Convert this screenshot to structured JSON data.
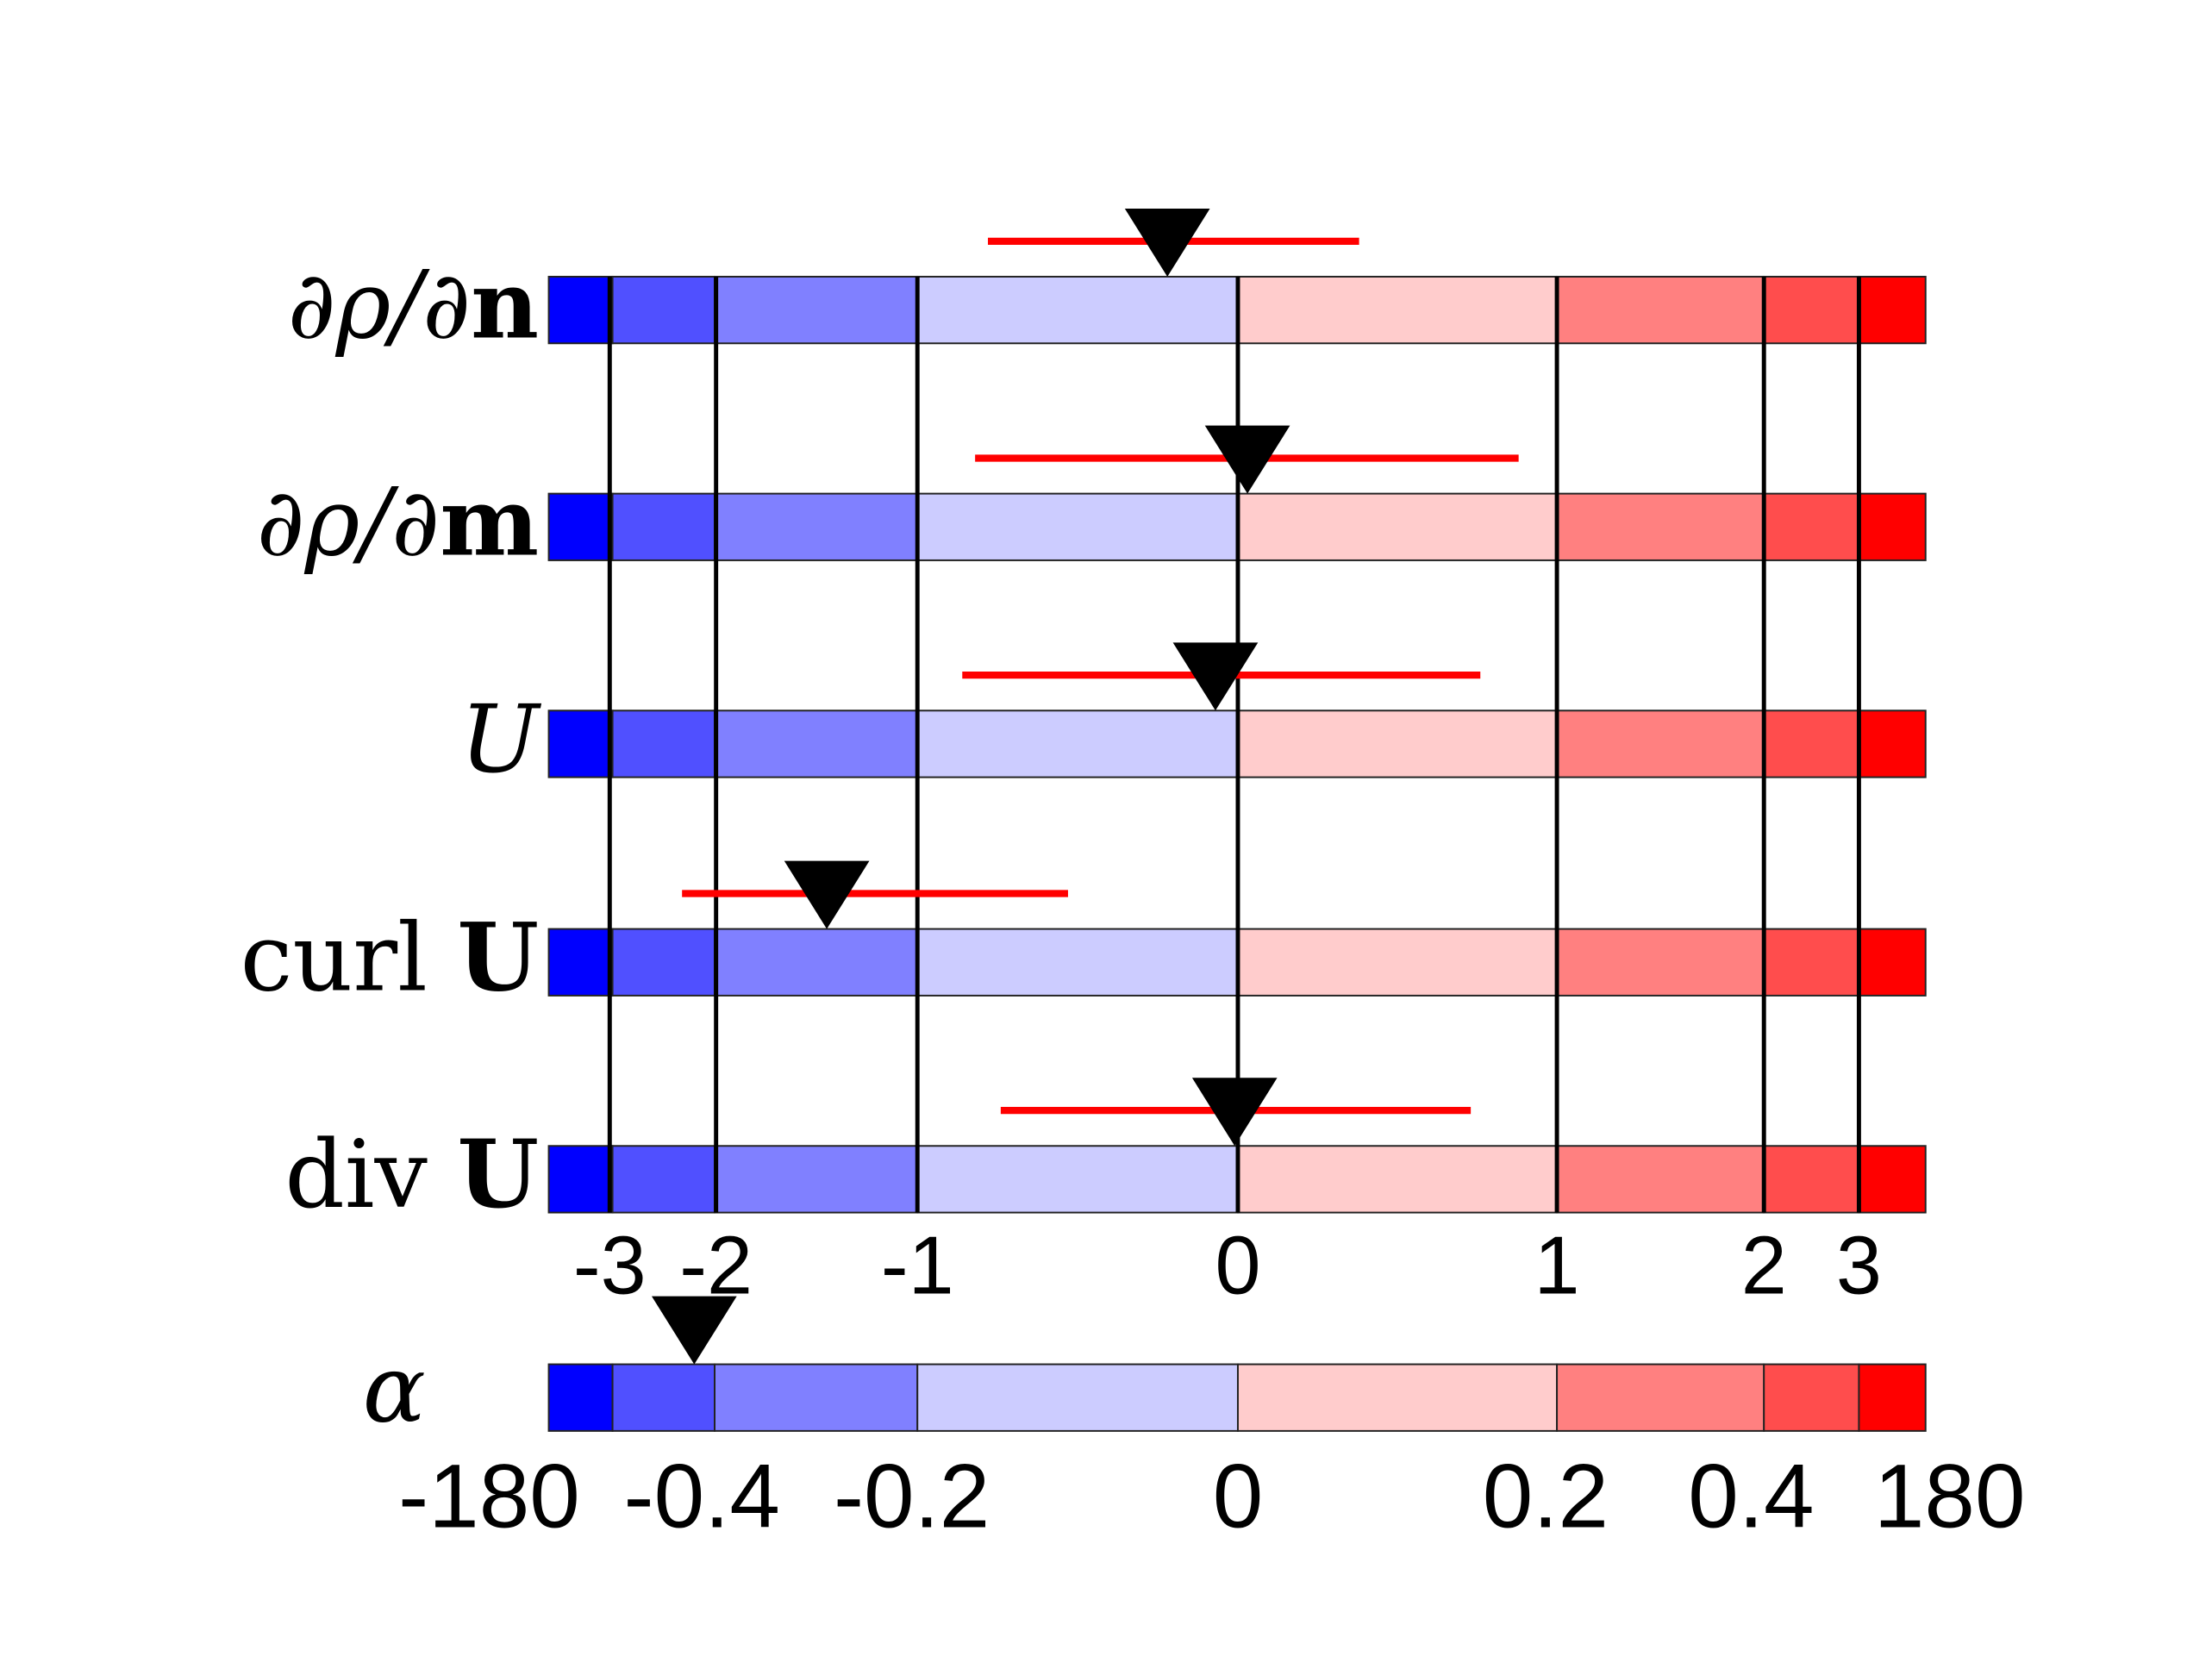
{
  "chart_data": {
    "type": "interval",
    "title": "",
    "colors": [
      "#0000ff",
      "#5050ff",
      "#8080ff",
      "#ccccff",
      "#ffcccc",
      "#ff8080",
      "#ff4d4d",
      "#ff0000"
    ],
    "marker_color": "#000000",
    "interval_color": "#ff0000",
    "xticks": [
      -3,
      -2,
      -1,
      0,
      1,
      2,
      3
    ],
    "xtick_labels": [
      "-3",
      "-2",
      "-1",
      "0",
      "1",
      "2",
      "3"
    ],
    "series": [
      {
        "label_parts": [
          {
            "t": "∂ρ/∂",
            "s": "i"
          },
          {
            "t": "n",
            "s": "b"
          }
        ],
        "name": "∂ρ/∂n",
        "marker": -0.22,
        "low": -0.78,
        "high": 0.38
      },
      {
        "label_parts": [
          {
            "t": "∂ρ/∂",
            "s": "i"
          },
          {
            "t": "m",
            "s": "b"
          }
        ],
        "name": "∂ρ/∂m",
        "marker": 0.03,
        "low": -0.82,
        "high": 0.88
      },
      {
        "label_parts": [
          {
            "t": "U",
            "s": "i"
          }
        ],
        "name": "U",
        "marker": -0.07,
        "low": -0.86,
        "high": 0.76
      },
      {
        "label_parts": [
          {
            "t": "curl ",
            "s": "n"
          },
          {
            "t": "U",
            "s": "b"
          }
        ],
        "name": "curl U",
        "marker": -1.45,
        "low": -2.32,
        "high": -0.53
      },
      {
        "label_parts": [
          {
            "t": "div ",
            "s": "n"
          },
          {
            "t": "U",
            "s": "b"
          }
        ],
        "name": "div U",
        "marker": -0.01,
        "low": -0.74,
        "high": 0.73
      }
    ],
    "alpha": {
      "label": "α",
      "tick_labels": [
        "-180",
        "-0.4",
        "-0.2",
        "0",
        "0.2",
        "0.4",
        "180"
      ],
      "marker_segment_position": 1.8
    }
  }
}
